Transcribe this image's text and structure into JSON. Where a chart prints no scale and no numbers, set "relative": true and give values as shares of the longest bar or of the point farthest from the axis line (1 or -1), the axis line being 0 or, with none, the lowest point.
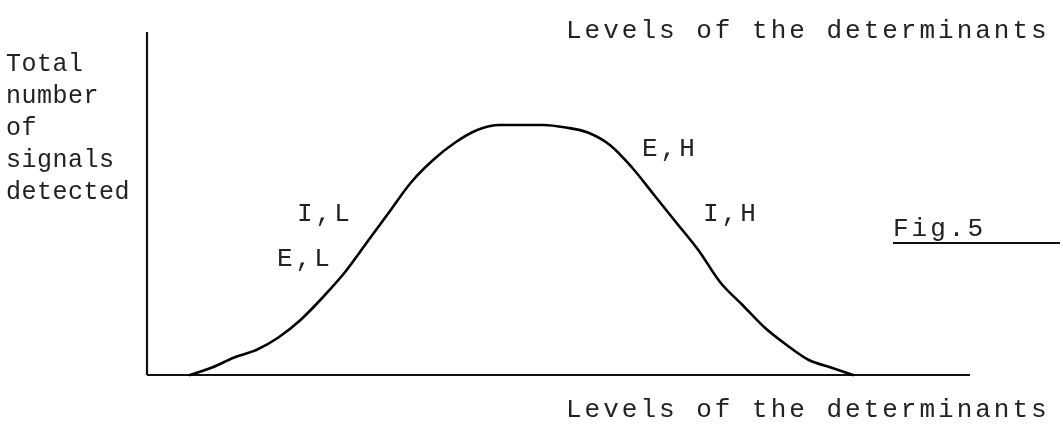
{
  "chart_data": {
    "type": "line",
    "title": "Levels of the determinants",
    "xlabel": "Levels of the determinants",
    "ylabel": "Total number of signals detected",
    "annotations": [
      "I,L",
      "E,L",
      "E,H",
      "I,H",
      "Fig.5"
    ],
    "relative": true,
    "categories": [
      null,
      null,
      null,
      null,
      null,
      null,
      null,
      null,
      null,
      null,
      null,
      null,
      null,
      null,
      null,
      null,
      null,
      null,
      null,
      null,
      null,
      null,
      null,
      null,
      null,
      null,
      null,
      null,
      null,
      null,
      null
    ],
    "series": [
      {
        "color": "#000000",
        "values": [
          0,
          0.03,
          0.07,
          0.1,
          0.15,
          0.22,
          0.31,
          0.41,
          0.53,
          0.65,
          0.77,
          0.86,
          0.93,
          0.98,
          1,
          1,
          1,
          0.99,
          0.97,
          0.92,
          0.83,
          0.72,
          0.61,
          0.5,
          0.37,
          0.28,
          0.19,
          0.12,
          0.06,
          0.03,
          0
        ]
      }
    ]
  }
}
